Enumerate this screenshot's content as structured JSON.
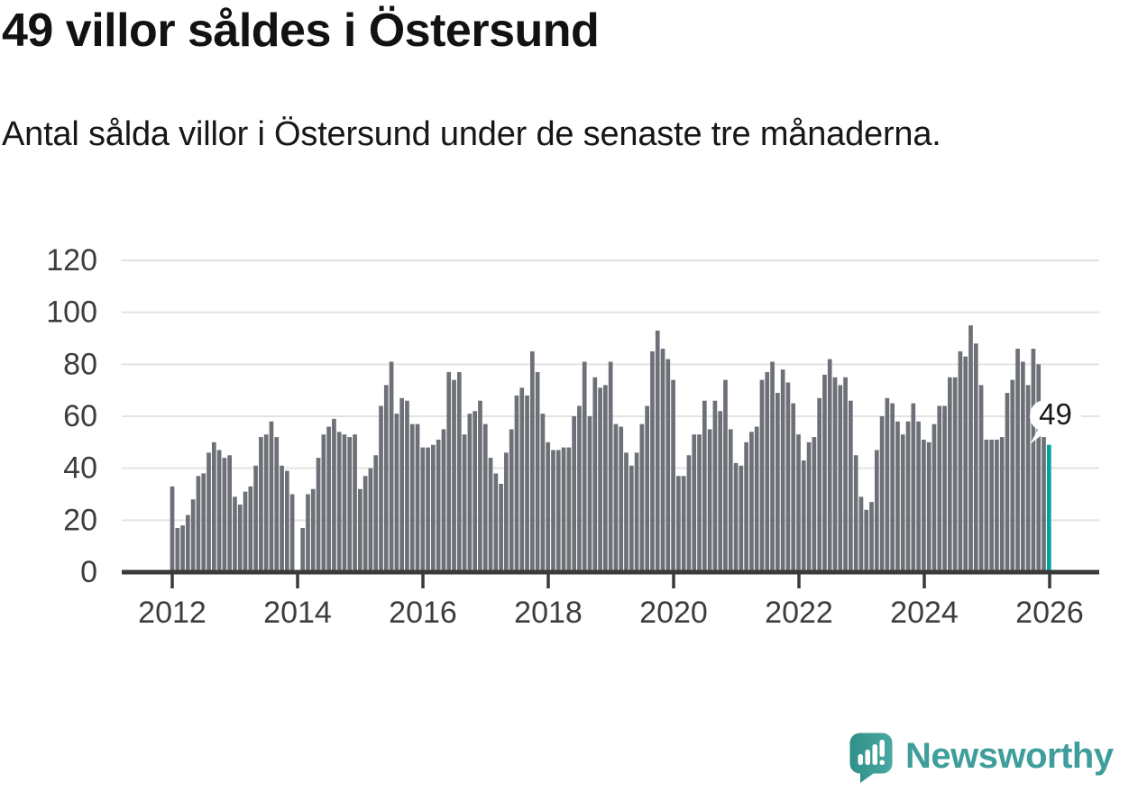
{
  "header": {
    "title": "49 villor såldes i Östersund",
    "subtitle": "Antal sålda villor i Östersund under de senaste tre månaderna."
  },
  "chart_data": {
    "type": "bar",
    "title": "49 villor såldes i Östersund",
    "subtitle": "Antal sålda villor i Östersund under de senaste tre månaderna.",
    "x_start": "2012-01",
    "frequency": "monthly",
    "values": [
      33,
      17,
      18,
      22,
      28,
      37,
      38,
      46,
      50,
      47,
      44,
      45,
      29,
      26,
      31,
      33,
      41,
      52,
      53,
      58,
      52,
      41,
      39,
      30,
      0,
      17,
      30,
      32,
      44,
      53,
      56,
      59,
      54,
      53,
      52,
      53,
      32,
      37,
      40,
      45,
      64,
      72,
      81,
      61,
      67,
      66,
      57,
      57,
      48,
      48,
      49,
      51,
      55,
      77,
      74,
      77,
      53,
      61,
      62,
      66,
      57,
      44,
      38,
      34,
      46,
      55,
      68,
      71,
      68,
      85,
      77,
      61,
      50,
      47,
      47,
      48,
      48,
      60,
      64,
      81,
      60,
      75,
      71,
      72,
      81,
      57,
      56,
      46,
      41,
      46,
      57,
      64,
      85,
      93,
      86,
      82,
      74,
      37,
      37,
      45,
      53,
      53,
      66,
      55,
      66,
      62,
      74,
      55,
      42,
      41,
      50,
      54,
      56,
      74,
      77,
      81,
      69,
      78,
      73,
      65,
      53,
      43,
      50,
      52,
      67,
      76,
      82,
      75,
      72,
      75,
      66,
      45,
      29,
      24,
      27,
      47,
      60,
      67,
      65,
      58,
      53,
      58,
      65,
      58,
      51,
      50,
      57,
      64,
      64,
      75,
      75,
      85,
      83,
      95,
      88,
      72,
      51,
      51,
      51,
      52,
      69,
      74,
      86,
      81,
      72,
      86,
      80,
      52,
      49
    ],
    "highlight": {
      "index": 168,
      "value": 49,
      "label": "49"
    },
    "ylim": [
      0,
      120
    ],
    "yticks": [
      "0",
      "20",
      "40",
      "60",
      "80",
      "100",
      "120"
    ],
    "xticks": [
      "2012",
      "2014",
      "2016",
      "2018",
      "2020",
      "2022",
      "2024",
      "2026"
    ],
    "grid": "horizontal",
    "legend": "none",
    "colors": {
      "bar": "#6d7076",
      "highlight": "#00a3a0",
      "grid": "#e3e3e3",
      "axis": "#3a3a3a",
      "tick_text": "#3d3d3d",
      "callout_bg": "#ffffff",
      "callout_text": "#1a1a1a"
    }
  },
  "footer": {
    "brand": "Newsworthy",
    "brand_color": "#3f9e9b"
  }
}
